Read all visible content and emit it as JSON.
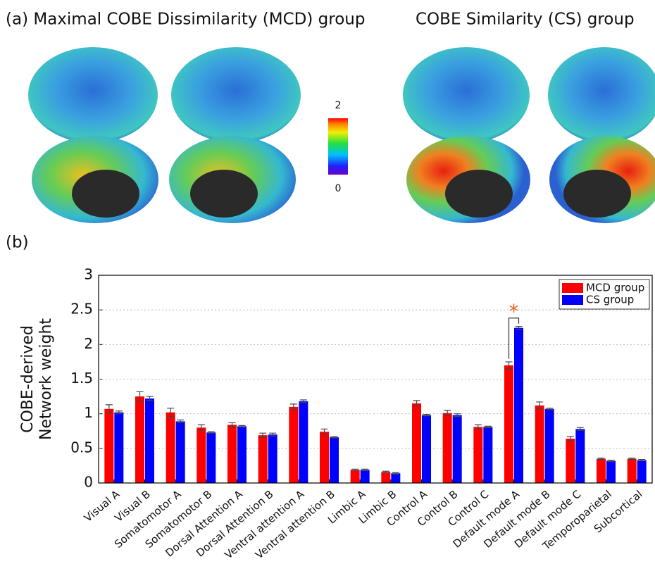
{
  "panel_a": {
    "title_left": "(a) Maximal COBE Dissimilarity (MCD) group",
    "title_right": "COBE Similarity (CS) group",
    "colorbar": {
      "max": 2,
      "min": 0
    }
  },
  "chart_data": {
    "type": "bar",
    "panel_label": "(b)",
    "y_label": [
      "COBE-derived",
      "Network weight"
    ],
    "categories": [
      "Visual A",
      "Visual B",
      "Somatomotor A",
      "Somatomotor B",
      "Dorsal Attention A",
      "Dorsal Attention B",
      "Ventral attention A",
      "Ventral attention B",
      "Limbic A",
      "Limbic B",
      "Control A",
      "Control B",
      "Control C",
      "Default mode A",
      "Default mode B",
      "Default mode C",
      "Temporoparietal",
      "Subcortical"
    ],
    "series": [
      {
        "name": "MCD group",
        "color": "#ff0000",
        "values": [
          1.07,
          1.25,
          1.02,
          0.8,
          0.84,
          0.69,
          1.1,
          0.74,
          0.19,
          0.16,
          1.15,
          1.01,
          0.81,
          1.7,
          1.12,
          0.64,
          0.35,
          0.35
        ],
        "errors": [
          0.06,
          0.07,
          0.06,
          0.04,
          0.03,
          0.03,
          0.04,
          0.04,
          0.01,
          0.01,
          0.04,
          0.04,
          0.03,
          0.05,
          0.05,
          0.03,
          0.01,
          0.01
        ]
      },
      {
        "name": "CS group",
        "color": "#0000ff",
        "values": [
          1.02,
          1.22,
          0.89,
          0.73,
          0.82,
          0.7,
          1.18,
          0.66,
          0.19,
          0.14,
          0.98,
          0.98,
          0.81,
          2.24,
          1.07,
          0.78,
          0.32,
          0.33
        ],
        "errors": [
          0.02,
          0.03,
          0.02,
          0.01,
          0.01,
          0.02,
          0.02,
          0.01,
          0.01,
          0.01,
          0.01,
          0.02,
          0.01,
          0.02,
          0.01,
          0.02,
          0.01,
          0.01
        ]
      }
    ],
    "ylim": [
      0,
      3
    ],
    "yticks": [
      0,
      0.5,
      1,
      1.5,
      2,
      2.5,
      3
    ],
    "grid": true,
    "legend": "upper right",
    "annotation": {
      "text": "*",
      "category": 13,
      "color": "#f26522"
    }
  }
}
